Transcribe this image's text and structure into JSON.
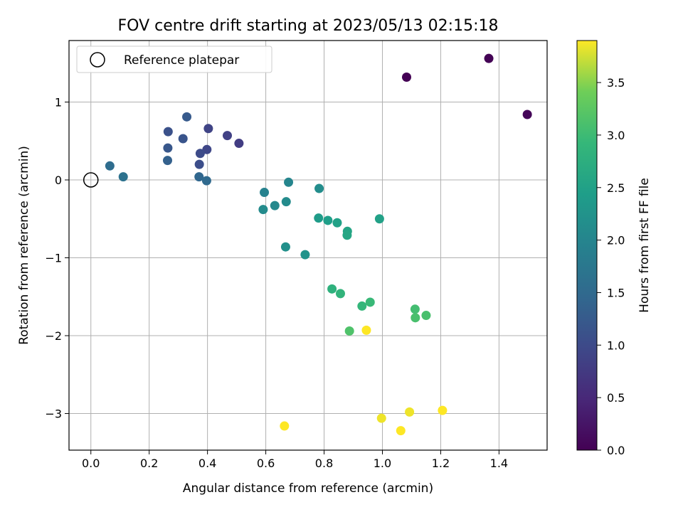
{
  "chart_data": {
    "type": "scatter",
    "title": "FOV centre drift starting at 2023/05/13 02:15:18",
    "xlabel": "Angular distance from reference (arcmin)",
    "ylabel": "Rotation from reference (arcmin)",
    "xlim": [
      -0.075,
      1.565
    ],
    "ylim": [
      -3.47,
      1.79
    ],
    "xticks": [
      0.0,
      0.2,
      0.4,
      0.6,
      0.8,
      1.0,
      1.2,
      1.4
    ],
    "xtick_labels": [
      "0.0",
      "0.2",
      "0.4",
      "0.6",
      "0.8",
      "1.0",
      "1.2",
      "1.4"
    ],
    "yticks": [
      1,
      0,
      -1,
      -2,
      -3
    ],
    "ytick_labels": [
      "1",
      "0",
      "−1",
      "−2",
      "−3"
    ],
    "grid": true,
    "legend": {
      "placement": "top-left",
      "entries": [
        "Reference platepar"
      ]
    },
    "reference_point": {
      "x": 0.0,
      "y": 0.0
    },
    "colorbar": {
      "label": "Hours from first FF file",
      "colormap": "viridis",
      "range": [
        0.0,
        3.9
      ],
      "ticks": [
        0.0,
        0.5,
        1.0,
        1.5,
        2.0,
        2.5,
        3.0,
        3.5
      ],
      "tick_labels": [
        "0.0",
        "0.5",
        "1.0",
        "1.5",
        "2.0",
        "2.5",
        "3.0",
        "3.5"
      ]
    },
    "points": [
      {
        "x": 1.083,
        "y": 1.32,
        "c": 0.0
      },
      {
        "x": 1.365,
        "y": 1.56,
        "c": 0.02
      },
      {
        "x": 1.497,
        "y": 0.84,
        "c": 0.05
      },
      {
        "x": 0.508,
        "y": 0.47,
        "c": 0.8
      },
      {
        "x": 0.468,
        "y": 0.57,
        "c": 0.85
      },
      {
        "x": 0.403,
        "y": 0.66,
        "c": 0.9
      },
      {
        "x": 0.398,
        "y": 0.39,
        "c": 0.95
      },
      {
        "x": 0.375,
        "y": 0.34,
        "c": 1.0
      },
      {
        "x": 0.372,
        "y": 0.2,
        "c": 1.05
      },
      {
        "x": 0.265,
        "y": 0.62,
        "c": 1.1
      },
      {
        "x": 0.316,
        "y": 0.53,
        "c": 1.15
      },
      {
        "x": 0.264,
        "y": 0.41,
        "c": 1.2
      },
      {
        "x": 0.329,
        "y": 0.81,
        "c": 1.25
      },
      {
        "x": 0.263,
        "y": 0.25,
        "c": 1.35
      },
      {
        "x": 0.371,
        "y": 0.04,
        "c": 1.45
      },
      {
        "x": 0.397,
        "y": -0.01,
        "c": 1.5
      },
      {
        "x": 0.065,
        "y": 0.18,
        "c": 1.55
      },
      {
        "x": 0.111,
        "y": 0.04,
        "c": 1.65
      },
      {
        "x": 0.595,
        "y": -0.16,
        "c": 1.95
      },
      {
        "x": 0.678,
        "y": -0.03,
        "c": 2.0
      },
      {
        "x": 0.631,
        "y": -0.33,
        "c": 2.05
      },
      {
        "x": 0.591,
        "y": -0.38,
        "c": 2.1
      },
      {
        "x": 0.67,
        "y": -0.28,
        "c": 2.1
      },
      {
        "x": 0.783,
        "y": -0.11,
        "c": 2.15
      },
      {
        "x": 0.668,
        "y": -0.86,
        "c": 2.2
      },
      {
        "x": 0.735,
        "y": -0.96,
        "c": 2.25
      },
      {
        "x": 0.781,
        "y": -0.49,
        "c": 2.4
      },
      {
        "x": 0.813,
        "y": -0.52,
        "c": 2.45
      },
      {
        "x": 0.845,
        "y": -0.55,
        "c": 2.5
      },
      {
        "x": 0.88,
        "y": -0.66,
        "c": 2.55
      },
      {
        "x": 0.879,
        "y": -0.71,
        "c": 2.6
      },
      {
        "x": 0.99,
        "y": -0.5,
        "c": 2.5
      },
      {
        "x": 0.827,
        "y": -1.4,
        "c": 2.8
      },
      {
        "x": 0.856,
        "y": -1.46,
        "c": 2.85
      },
      {
        "x": 0.93,
        "y": -1.62,
        "c": 2.9
      },
      {
        "x": 0.958,
        "y": -1.57,
        "c": 2.95
      },
      {
        "x": 1.112,
        "y": -1.66,
        "c": 3.05
      },
      {
        "x": 1.113,
        "y": -1.77,
        "c": 3.1
      },
      {
        "x": 1.15,
        "y": -1.74,
        "c": 3.1
      },
      {
        "x": 0.887,
        "y": -1.94,
        "c": 3.15
      },
      {
        "x": 0.945,
        "y": -1.93,
        "c": 3.9
      },
      {
        "x": 0.664,
        "y": -3.16,
        "c": 3.9
      },
      {
        "x": 0.997,
        "y": -3.06,
        "c": 3.85
      },
      {
        "x": 1.063,
        "y": -3.22,
        "c": 3.9
      },
      {
        "x": 1.093,
        "y": -2.98,
        "c": 3.85
      },
      {
        "x": 1.206,
        "y": -2.96,
        "c": 3.9
      }
    ]
  }
}
